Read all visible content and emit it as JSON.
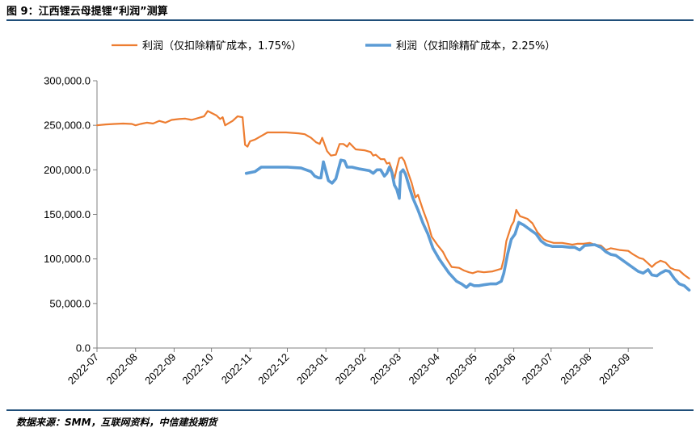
{
  "figure": {
    "title": "图 9：江西锂云母提锂“利润”测算",
    "source": "数据来源：SMM，互联网资料，中信建投期货"
  },
  "chart_data": {
    "type": "line",
    "title": "",
    "xlabel": "",
    "ylabel": "",
    "ylim": [
      0,
      300000
    ],
    "yticks": [
      "0.0",
      "50,000.0",
      "100,000.0",
      "150,000.0",
      "200,000.0",
      "250,000.0",
      "300,000.0"
    ],
    "x_range": [
      "2022-07",
      "2023-09"
    ],
    "xticks": [
      "2022-07",
      "2022-08",
      "2022-09",
      "2022-10",
      "2022-11",
      "2022-12",
      "2023-01",
      "2023-02",
      "2023-03",
      "2023-04",
      "2023-05",
      "2023-06",
      "2023-07",
      "2023-08",
      "2023-09"
    ],
    "grid": false,
    "legend": "top",
    "series": [
      {
        "name": "利润（仅扣除精矿成本，1.75%）",
        "color": "#ed7d31",
        "points": [
          [
            "2022-07-01",
            250000
          ],
          [
            "2022-07-08",
            251000
          ],
          [
            "2022-07-15",
            251500
          ],
          [
            "2022-07-22",
            252000
          ],
          [
            "2022-07-29",
            251500
          ],
          [
            "2022-08-01",
            250000
          ],
          [
            "2022-08-05",
            251500
          ],
          [
            "2022-08-10",
            253000
          ],
          [
            "2022-08-15",
            252000
          ],
          [
            "2022-08-20",
            255000
          ],
          [
            "2022-08-25",
            253000
          ],
          [
            "2022-08-30",
            256000
          ],
          [
            "2022-09-05",
            257000
          ],
          [
            "2022-09-10",
            257500
          ],
          [
            "2022-09-15",
            256000
          ],
          [
            "2022-09-20",
            258000
          ],
          [
            "2022-09-25",
            260000
          ],
          [
            "2022-09-28",
            266000
          ],
          [
            "2022-10-05",
            261000
          ],
          [
            "2022-10-08",
            257000
          ],
          [
            "2022-10-10",
            259000
          ],
          [
            "2022-10-12",
            250000
          ],
          [
            "2022-10-18",
            255000
          ],
          [
            "2022-10-22",
            260000
          ],
          [
            "2022-10-26",
            259000
          ],
          [
            "2022-10-28",
            228000
          ],
          [
            "2022-10-30",
            226000
          ],
          [
            "2022-11-01",
            232000
          ],
          [
            "2022-11-05",
            234000
          ],
          [
            "2022-11-10",
            238000
          ],
          [
            "2022-11-15",
            242000
          ],
          [
            "2022-11-20",
            242000
          ],
          [
            "2022-11-30",
            242000
          ],
          [
            "2022-12-10",
            241000
          ],
          [
            "2022-12-15",
            240000
          ],
          [
            "2022-12-20",
            236000
          ],
          [
            "2022-12-24",
            231000
          ],
          [
            "2022-12-27",
            229000
          ],
          [
            "2022-12-29",
            236000
          ],
          [
            "2023-01-02",
            221000
          ],
          [
            "2023-01-05",
            216000
          ],
          [
            "2023-01-09",
            217000
          ],
          [
            "2023-01-12",
            229000
          ],
          [
            "2023-01-15",
            229000
          ],
          [
            "2023-01-18",
            226000
          ],
          [
            "2023-01-20",
            230000
          ],
          [
            "2023-01-25",
            223000
          ],
          [
            "2023-02-01",
            222000
          ],
          [
            "2023-02-06",
            220000
          ],
          [
            "2023-02-08",
            216000
          ],
          [
            "2023-02-10",
            217000
          ],
          [
            "2023-02-14",
            212000
          ],
          [
            "2023-02-17",
            212000
          ],
          [
            "2023-02-19",
            207000
          ],
          [
            "2023-02-21",
            208000
          ],
          [
            "2023-02-23",
            200000
          ],
          [
            "2023-02-25",
            190000
          ],
          [
            "2023-02-27",
            202000
          ],
          [
            "2023-03-01",
            213000
          ],
          [
            "2023-03-03",
            214000
          ],
          [
            "2023-03-05",
            210000
          ],
          [
            "2023-03-08",
            197000
          ],
          [
            "2023-03-11",
            185000
          ],
          [
            "2023-03-14",
            169000
          ],
          [
            "2023-03-16",
            172000
          ],
          [
            "2023-03-20",
            155000
          ],
          [
            "2023-03-24",
            140000
          ],
          [
            "2023-03-27",
            125000
          ],
          [
            "2023-04-01",
            115000
          ],
          [
            "2023-04-05",
            108000
          ],
          [
            "2023-04-08",
            100000
          ],
          [
            "2023-04-12",
            91000
          ],
          [
            "2023-04-18",
            90000
          ],
          [
            "2023-04-22",
            87000
          ],
          [
            "2023-04-26",
            85000
          ],
          [
            "2023-04-29",
            84000
          ],
          [
            "2023-05-03",
            86000
          ],
          [
            "2023-05-08",
            85000
          ],
          [
            "2023-05-15",
            86000
          ],
          [
            "2023-05-22",
            89000
          ],
          [
            "2023-05-24",
            100000
          ],
          [
            "2023-05-26",
            120000
          ],
          [
            "2023-05-30",
            137000
          ],
          [
            "2023-06-01",
            142000
          ],
          [
            "2023-06-03",
            155000
          ],
          [
            "2023-06-06",
            148000
          ],
          [
            "2023-06-12",
            145000
          ],
          [
            "2023-06-16",
            140000
          ],
          [
            "2023-06-20",
            130000
          ],
          [
            "2023-06-25",
            122000
          ],
          [
            "2023-06-28",
            120000
          ],
          [
            "2023-07-03",
            118000
          ],
          [
            "2023-07-10",
            118000
          ],
          [
            "2023-07-18",
            116000
          ],
          [
            "2023-07-22",
            117000
          ],
          [
            "2023-07-27",
            117000
          ],
          [
            "2023-08-01",
            118000
          ],
          [
            "2023-08-05",
            116000
          ],
          [
            "2023-08-10",
            115000
          ],
          [
            "2023-08-14",
            110000
          ],
          [
            "2023-08-18",
            112000
          ],
          [
            "2023-08-25",
            110000
          ],
          [
            "2023-09-01",
            109000
          ],
          [
            "2023-09-05",
            105000
          ],
          [
            "2023-09-10",
            101000
          ],
          [
            "2023-09-13",
            100000
          ],
          [
            "2023-09-17",
            95000
          ],
          [
            "2023-09-20",
            91000
          ],
          [
            "2023-09-23",
            95000
          ],
          [
            "2023-09-27",
            98000
          ],
          [
            "2023-10-01",
            96000
          ],
          [
            "2023-10-05",
            90000
          ],
          [
            "2023-10-08",
            88000
          ],
          [
            "2023-10-12",
            87000
          ],
          [
            "2023-10-16",
            82000
          ],
          [
            "2023-10-20",
            78000
          ]
        ]
      },
      {
        "name": "利润（仅扣除精矿成本，2.25%）",
        "color": "#5b9bd5",
        "points": [
          [
            "2022-10-29",
            196000
          ],
          [
            "2022-11-05",
            198000
          ],
          [
            "2022-11-10",
            203000
          ],
          [
            "2022-11-20",
            203000
          ],
          [
            "2022-12-01",
            203000
          ],
          [
            "2022-12-12",
            202000
          ],
          [
            "2022-12-16",
            200000
          ],
          [
            "2022-12-20",
            198000
          ],
          [
            "2022-12-23",
            193000
          ],
          [
            "2022-12-26",
            191000
          ],
          [
            "2022-12-28",
            191000
          ],
          [
            "2022-12-30",
            209000
          ],
          [
            "2023-01-03",
            188000
          ],
          [
            "2023-01-06",
            185000
          ],
          [
            "2023-01-09",
            190000
          ],
          [
            "2023-01-13",
            211000
          ],
          [
            "2023-01-16",
            210000
          ],
          [
            "2023-01-18",
            203000
          ],
          [
            "2023-01-22",
            203000
          ],
          [
            "2023-01-28",
            201000
          ],
          [
            "2023-02-05",
            199000
          ],
          [
            "2023-02-08",
            196000
          ],
          [
            "2023-02-11",
            200000
          ],
          [
            "2023-02-14",
            200000
          ],
          [
            "2023-02-17",
            193000
          ],
          [
            "2023-02-19",
            196000
          ],
          [
            "2023-02-21",
            203000
          ],
          [
            "2023-02-23",
            197000
          ],
          [
            "2023-02-25",
            183000
          ],
          [
            "2023-02-27",
            178000
          ],
          [
            "2023-02-29",
            168000
          ],
          [
            "2023-03-02",
            197000
          ],
          [
            "2023-03-04",
            200000
          ],
          [
            "2023-03-06",
            195000
          ],
          [
            "2023-03-09",
            181000
          ],
          [
            "2023-03-12",
            168000
          ],
          [
            "2023-03-16",
            155000
          ],
          [
            "2023-03-20",
            140000
          ],
          [
            "2023-03-24",
            128000
          ],
          [
            "2023-03-28",
            112000
          ],
          [
            "2023-04-02",
            100000
          ],
          [
            "2023-04-06",
            92000
          ],
          [
            "2023-04-10",
            84000
          ],
          [
            "2023-04-16",
            75000
          ],
          [
            "2023-04-20",
            72000
          ],
          [
            "2023-04-24",
            68000
          ],
          [
            "2023-04-27",
            72000
          ],
          [
            "2023-04-30",
            70000
          ],
          [
            "2023-05-04",
            70000
          ],
          [
            "2023-05-08",
            71000
          ],
          [
            "2023-05-13",
            72000
          ],
          [
            "2023-05-18",
            72000
          ],
          [
            "2023-05-22",
            75000
          ],
          [
            "2023-05-24",
            84000
          ],
          [
            "2023-05-27",
            105000
          ],
          [
            "2023-05-30",
            122000
          ],
          [
            "2023-06-02",
            128000
          ],
          [
            "2023-06-05",
            141000
          ],
          [
            "2023-06-09",
            138000
          ],
          [
            "2023-06-14",
            133000
          ],
          [
            "2023-06-19",
            128000
          ],
          [
            "2023-06-23",
            120000
          ],
          [
            "2023-06-27",
            116000
          ],
          [
            "2023-07-02",
            114000
          ],
          [
            "2023-07-10",
            114000
          ],
          [
            "2023-07-16",
            113000
          ],
          [
            "2023-07-20",
            113000
          ],
          [
            "2023-07-24",
            110000
          ],
          [
            "2023-07-28",
            115000
          ],
          [
            "2023-08-05",
            116000
          ],
          [
            "2023-08-10",
            113000
          ],
          [
            "2023-08-14",
            108000
          ],
          [
            "2023-08-18",
            105000
          ],
          [
            "2023-08-22",
            104000
          ],
          [
            "2023-08-26",
            100000
          ],
          [
            "2023-08-30",
            96000
          ],
          [
            "2023-09-05",
            90000
          ],
          [
            "2023-09-09",
            86000
          ],
          [
            "2023-09-13",
            84000
          ],
          [
            "2023-09-17",
            88000
          ],
          [
            "2023-09-20",
            82000
          ],
          [
            "2023-09-24",
            81000
          ],
          [
            "2023-09-27",
            84000
          ],
          [
            "2023-10-01",
            87000
          ],
          [
            "2023-10-04",
            86000
          ],
          [
            "2023-10-08",
            78000
          ],
          [
            "2023-10-12",
            72000
          ],
          [
            "2023-10-16",
            70000
          ],
          [
            "2023-10-20",
            65000
          ]
        ]
      }
    ]
  }
}
